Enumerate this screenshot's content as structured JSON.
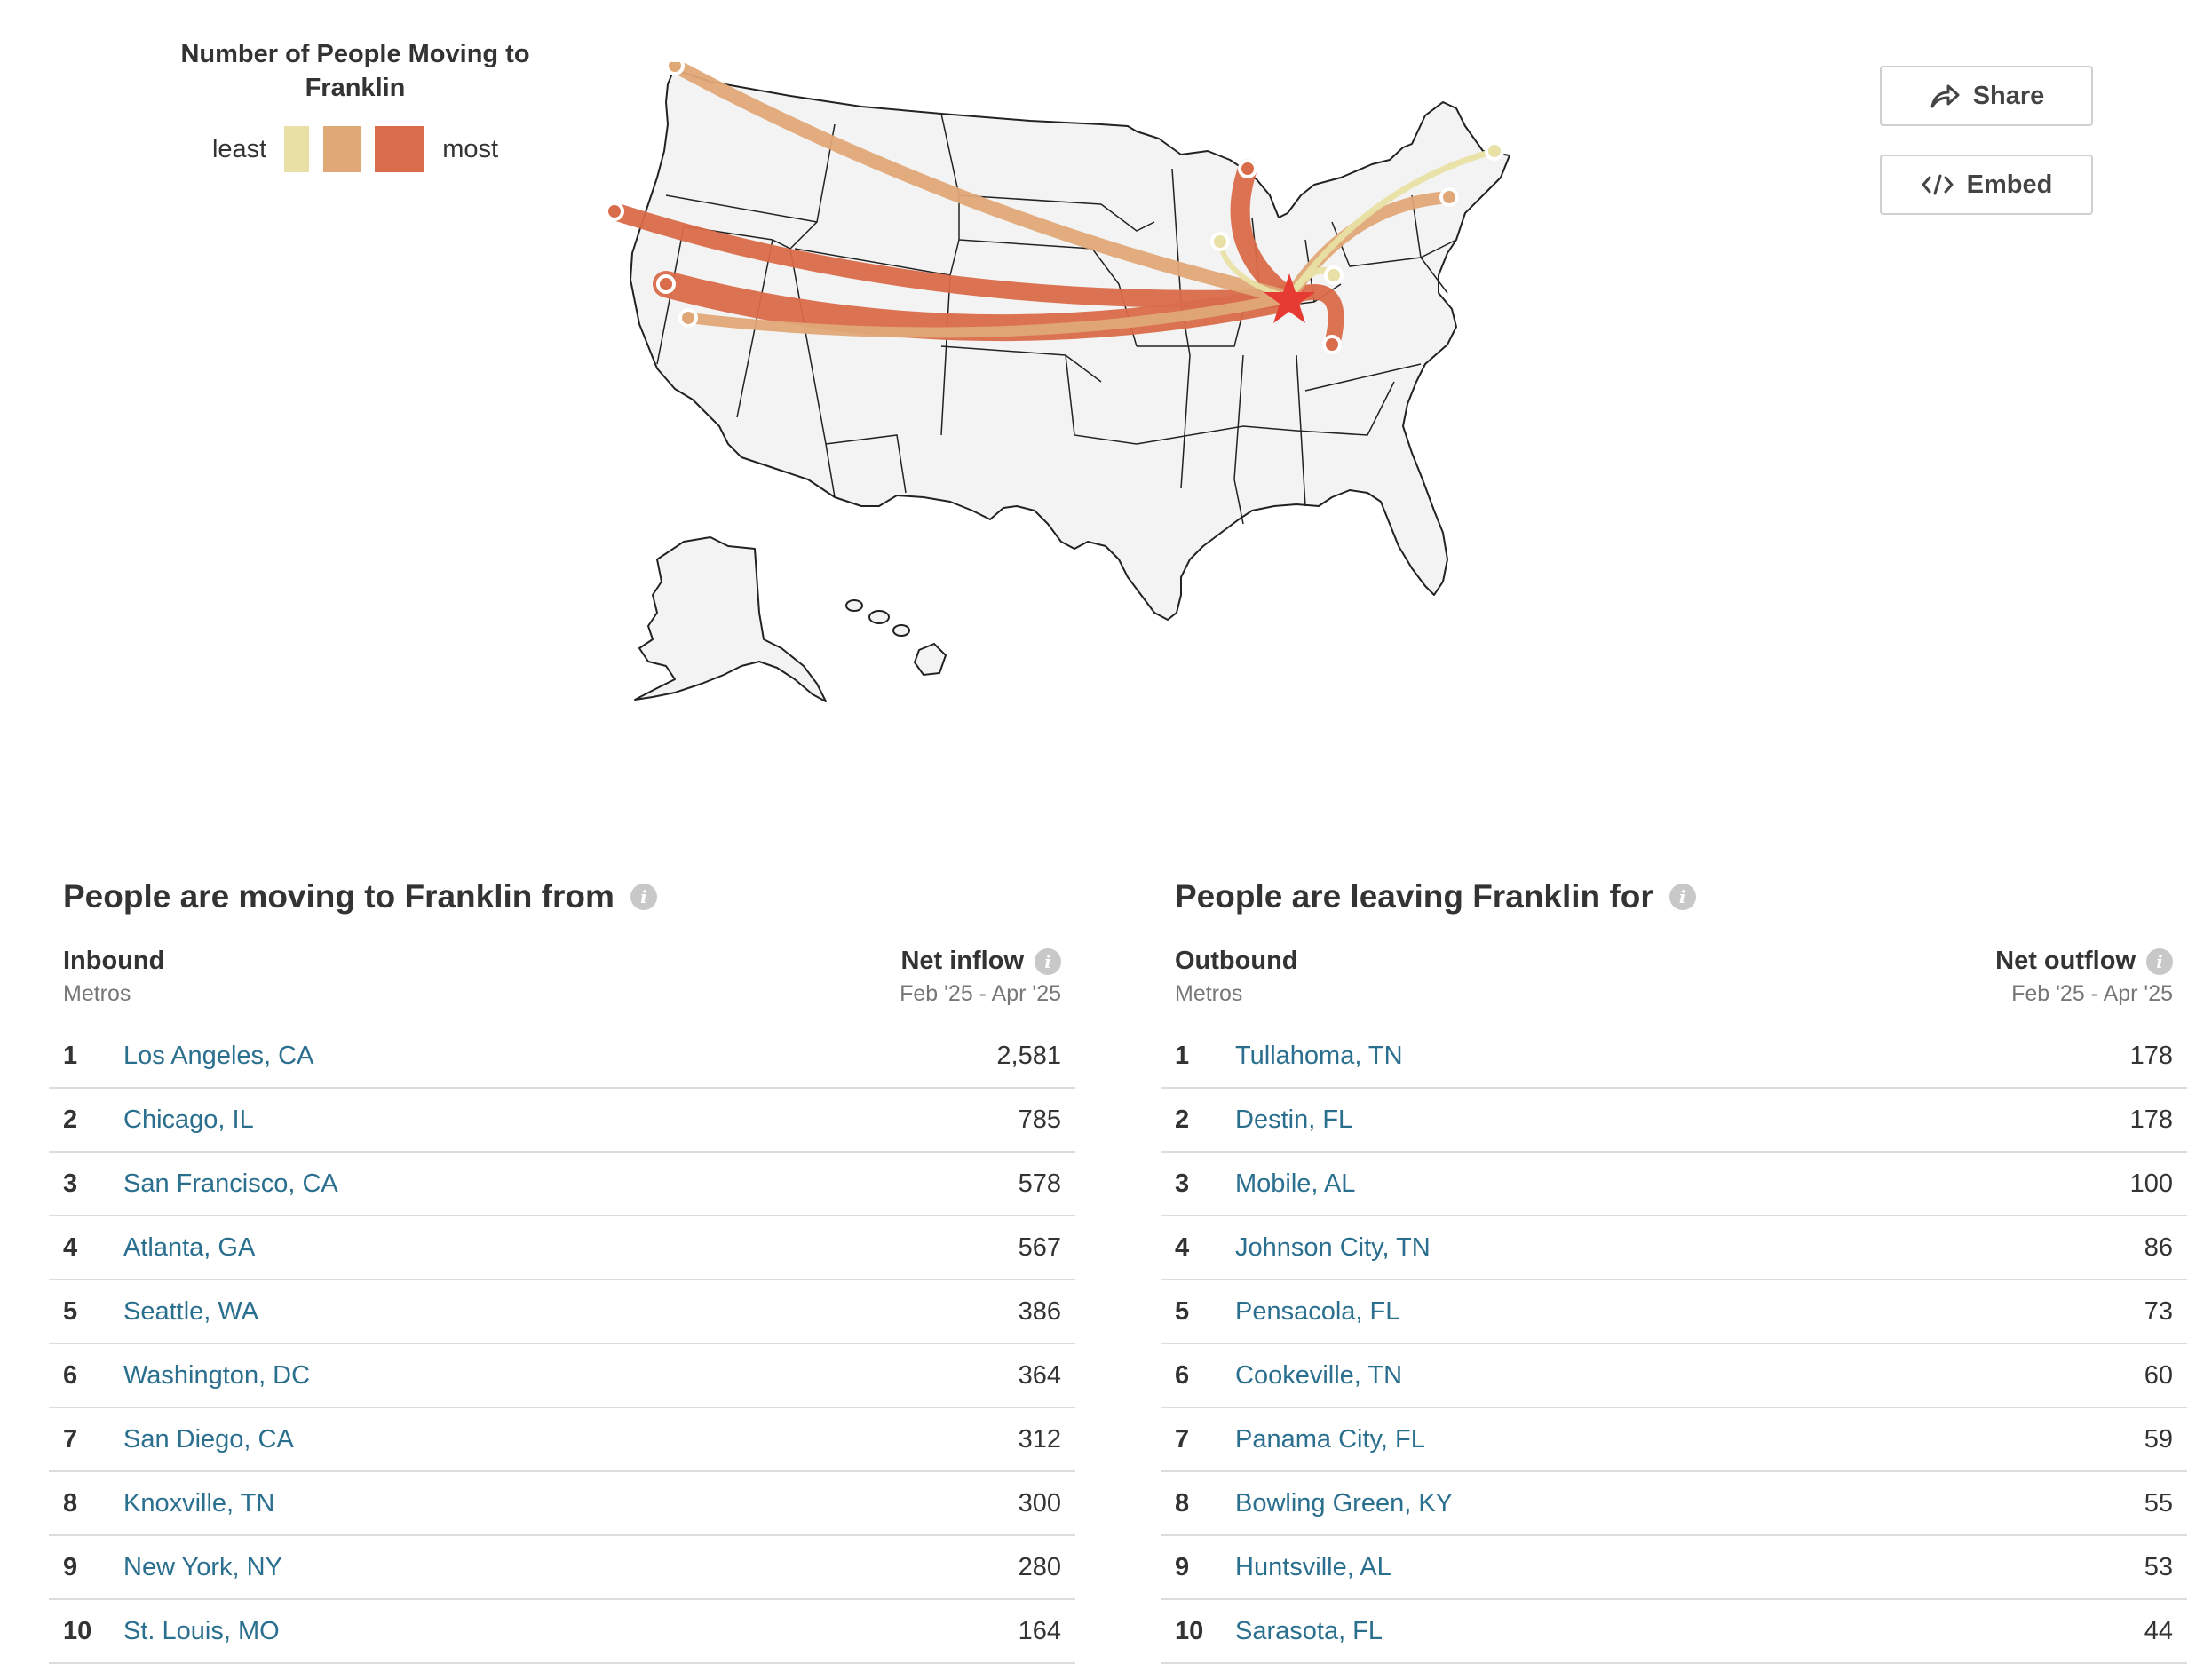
{
  "legend": {
    "title_line1": "Number of People Moving to",
    "title_line2": "Franklin",
    "least_label": "least",
    "most_label": "most",
    "colors": [
      "#e8e0a4",
      "#e0a877",
      "#d96c4a"
    ]
  },
  "buttons": {
    "share_label": "Share",
    "embed_label": "Embed"
  },
  "map": {
    "destination": "Franklin",
    "colors": {
      "land": "#f3f3f3",
      "border": "#222222",
      "destination_star": "#e53b33"
    }
  },
  "inbound": {
    "title": "People are moving to Franklin from",
    "col_left_main": "Inbound",
    "col_left_sub": "Metros",
    "col_right_main": "Net inflow",
    "col_right_sub": "Feb '25 - Apr '25",
    "rows": [
      {
        "rank": "1",
        "city": "Los Angeles, CA",
        "value": "2,581"
      },
      {
        "rank": "2",
        "city": "Chicago, IL",
        "value": "785"
      },
      {
        "rank": "3",
        "city": "San Francisco, CA",
        "value": "578"
      },
      {
        "rank": "4",
        "city": "Atlanta, GA",
        "value": "567"
      },
      {
        "rank": "5",
        "city": "Seattle, WA",
        "value": "386"
      },
      {
        "rank": "6",
        "city": "Washington, DC",
        "value": "364"
      },
      {
        "rank": "7",
        "city": "San Diego, CA",
        "value": "312"
      },
      {
        "rank": "8",
        "city": "Knoxville, TN",
        "value": "300"
      },
      {
        "rank": "9",
        "city": "New York, NY",
        "value": "280"
      },
      {
        "rank": "10",
        "city": "St. Louis, MO",
        "value": "164"
      }
    ]
  },
  "outbound": {
    "title": "People are leaving Franklin for",
    "col_left_main": "Outbound",
    "col_left_sub": "Metros",
    "col_right_main": "Net outflow",
    "col_right_sub": "Feb '25 - Apr '25",
    "rows": [
      {
        "rank": "1",
        "city": "Tullahoma, TN",
        "value": "178"
      },
      {
        "rank": "2",
        "city": "Destin, FL",
        "value": "178"
      },
      {
        "rank": "3",
        "city": "Mobile, AL",
        "value": "100"
      },
      {
        "rank": "4",
        "city": "Johnson City, TN",
        "value": "86"
      },
      {
        "rank": "5",
        "city": "Pensacola, FL",
        "value": "73"
      },
      {
        "rank": "6",
        "city": "Cookeville, TN",
        "value": "60"
      },
      {
        "rank": "7",
        "city": "Panama City, FL",
        "value": "59"
      },
      {
        "rank": "8",
        "city": "Bowling Green, KY",
        "value": "55"
      },
      {
        "rank": "9",
        "city": "Huntsville, AL",
        "value": "53"
      },
      {
        "rank": "10",
        "city": "Sarasota, FL",
        "value": "44"
      }
    ]
  }
}
